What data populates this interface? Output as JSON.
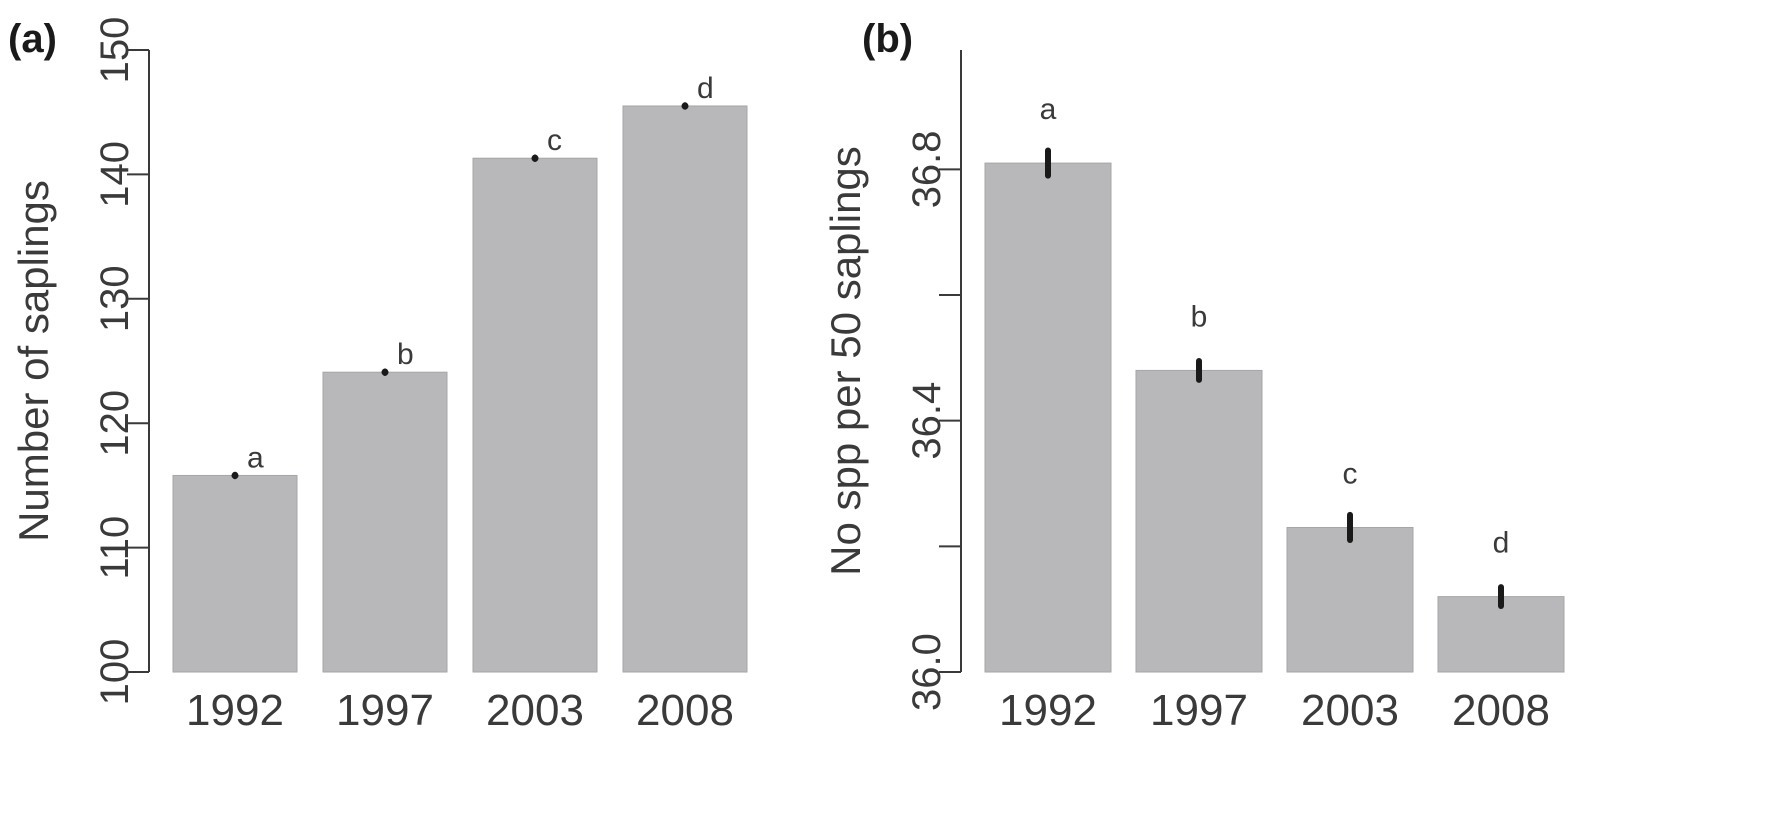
{
  "chart_data": [
    {
      "type": "bar",
      "panel_label": "(a)",
      "categories": [
        "1992",
        "1997",
        "2003",
        "2008"
      ],
      "values": [
        115.8,
        124.1,
        141.3,
        145.5
      ],
      "errors": [
        0.1,
        0.1,
        0.1,
        0.1
      ],
      "significance_letters": [
        "a",
        "b",
        "c",
        "d"
      ],
      "ylabel": "Number of saplings",
      "xlabel": "",
      "ylim": [
        100,
        150
      ],
      "yticks": [
        100,
        110,
        120,
        130,
        140,
        150
      ],
      "ytick_labels": [
        "100",
        "110",
        "120",
        "130",
        "140",
        "150"
      ],
      "bar_color": "#b8b8ba",
      "grid": false
    },
    {
      "type": "bar",
      "panel_label": "(b)",
      "categories": [
        "1992",
        "1997",
        "2003",
        "2008"
      ],
      "values": [
        36.81,
        36.48,
        36.23,
        36.12
      ],
      "errors": [
        0.02,
        0.015,
        0.02,
        0.015
      ],
      "significance_letters": [
        "a",
        "b",
        "c",
        "d"
      ],
      "ylabel": "No spp per 50 saplings",
      "xlabel": "",
      "ylim": [
        36.0,
        36.99
      ],
      "yticks": [
        36.0,
        36.2,
        36.4,
        36.6,
        36.8
      ],
      "ytick_labels": [
        "36.0",
        "",
        "36.4",
        "",
        "36.8"
      ],
      "bar_color": "#b8b8ba",
      "grid": false
    }
  ]
}
